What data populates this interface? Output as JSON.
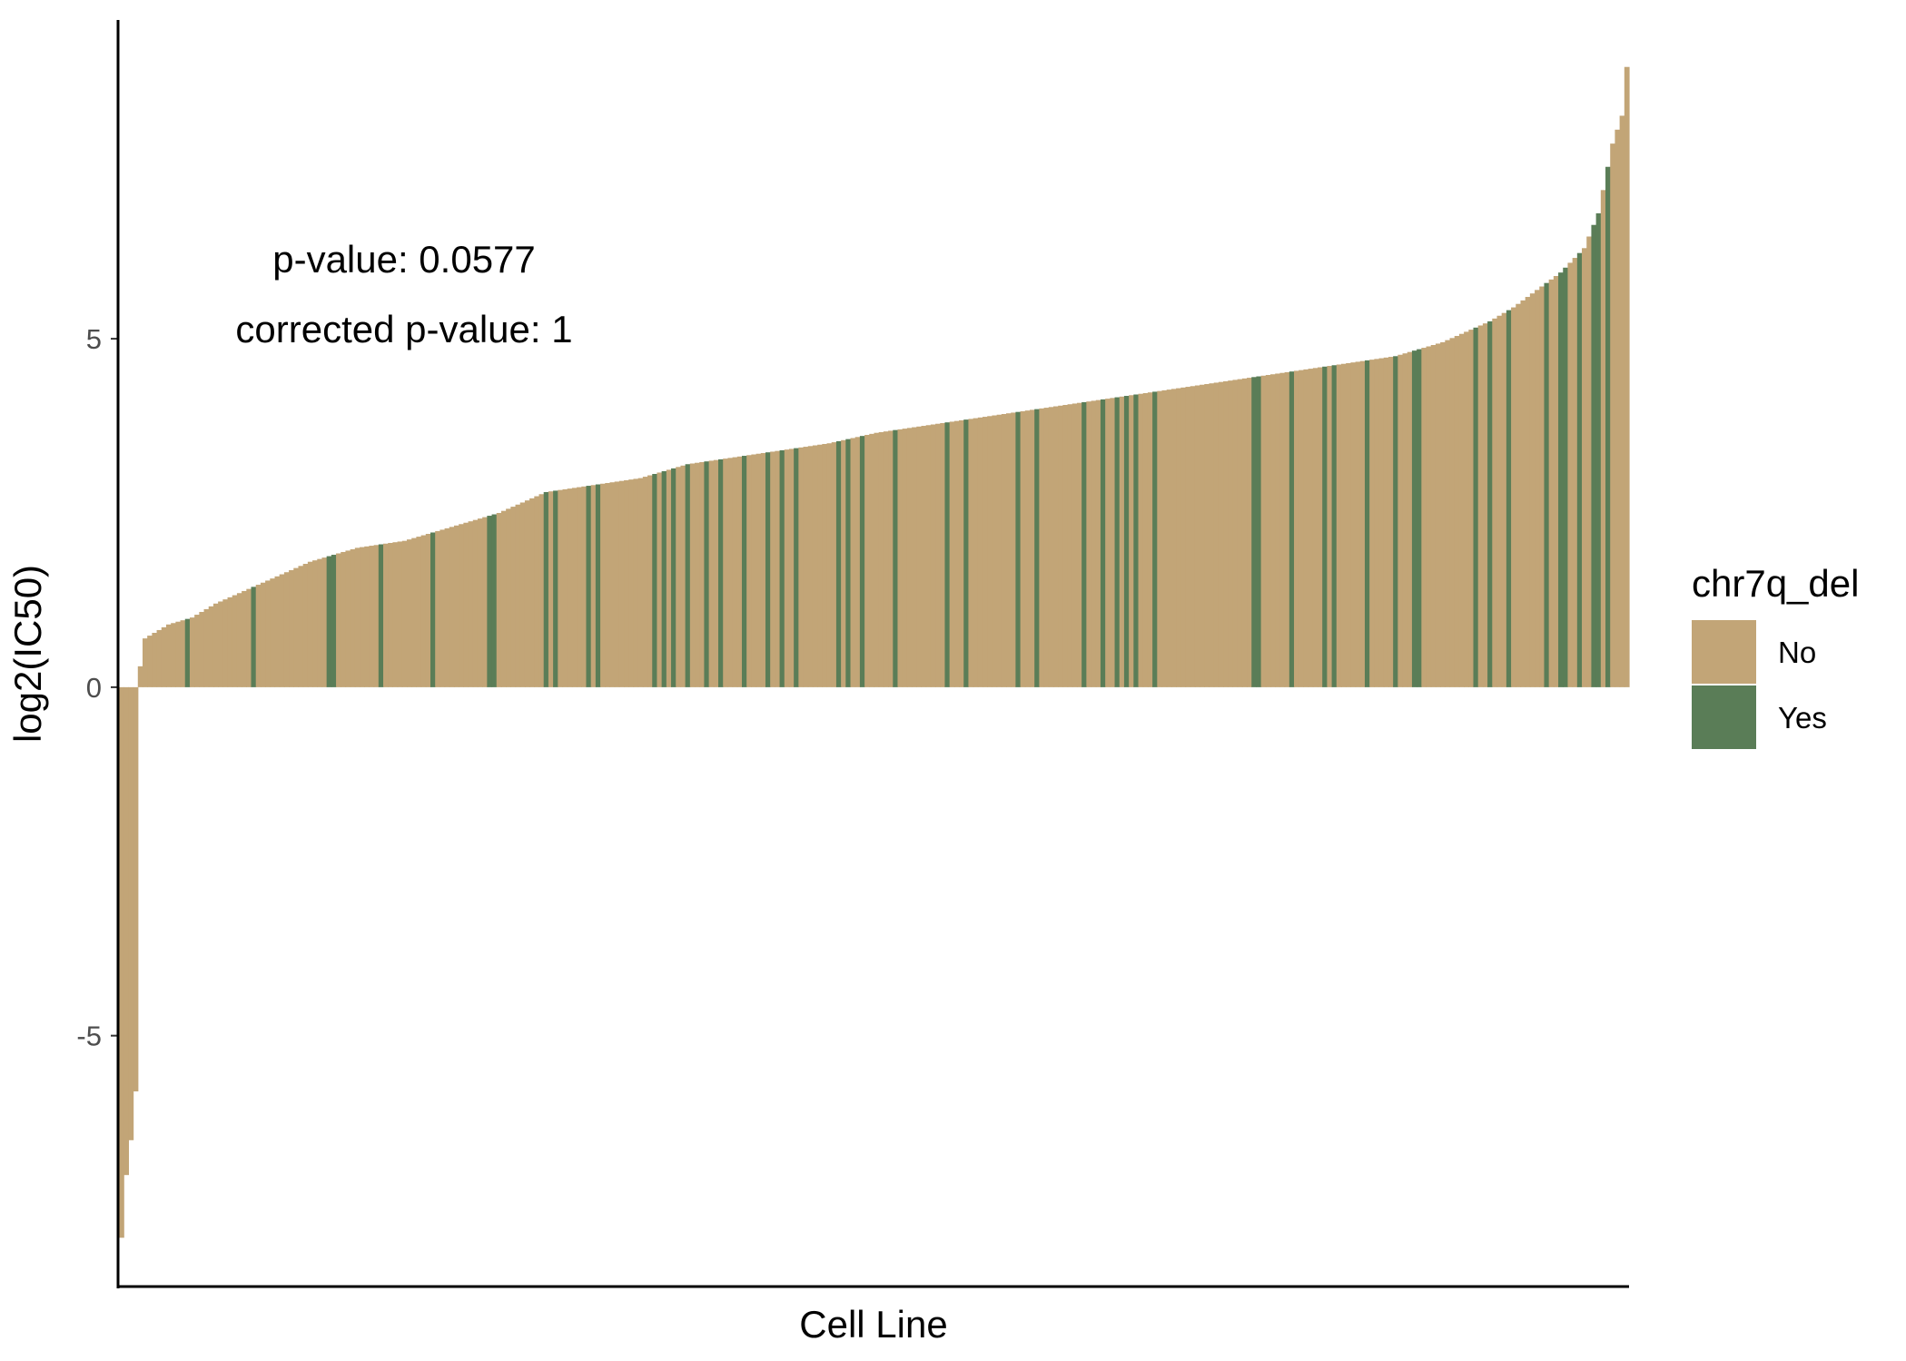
{
  "chart_data": {
    "type": "bar",
    "n_bars": 320,
    "xlabel": "Cell Line",
    "ylabel": "log2(IC50)",
    "ylim": [
      -8.6,
      9.6
    ],
    "yticks": [
      -5,
      0,
      5
    ],
    "ytick_labels": [
      "-5",
      "0",
      "5"
    ],
    "grid": false,
    "legend_placement": "right",
    "legend": {
      "title": "chr7q_del",
      "entries": [
        {
          "label": "No",
          "color": "#c2a577"
        },
        {
          "label": "Yes",
          "color": "#5a7d57"
        }
      ]
    },
    "annotations": [
      "p-value: 0.0577",
      "corrected p-value: 1"
    ],
    "curve_points": [
      [
        0,
        -7.9
      ],
      [
        1,
        -7.0
      ],
      [
        2,
        -6.5
      ],
      [
        3,
        -5.8
      ],
      [
        4,
        0.3
      ],
      [
        5,
        0.7
      ],
      [
        10,
        0.9
      ],
      [
        15,
        1.0
      ],
      [
        20,
        1.2
      ],
      [
        30,
        1.5
      ],
      [
        40,
        1.8
      ],
      [
        50,
        2.0
      ],
      [
        60,
        2.1
      ],
      [
        70,
        2.3
      ],
      [
        80,
        2.5
      ],
      [
        90,
        2.8
      ],
      [
        100,
        2.9
      ],
      [
        110,
        3.0
      ],
      [
        120,
        3.2
      ],
      [
        130,
        3.3
      ],
      [
        140,
        3.4
      ],
      [
        150,
        3.5
      ],
      [
        160,
        3.65
      ],
      [
        170,
        3.75
      ],
      [
        180,
        3.85
      ],
      [
        190,
        3.95
      ],
      [
        200,
        4.05
      ],
      [
        210,
        4.15
      ],
      [
        220,
        4.25
      ],
      [
        230,
        4.35
      ],
      [
        240,
        4.45
      ],
      [
        250,
        4.55
      ],
      [
        260,
        4.65
      ],
      [
        270,
        4.75
      ],
      [
        280,
        4.95
      ],
      [
        290,
        5.25
      ],
      [
        295,
        5.45
      ],
      [
        300,
        5.7
      ],
      [
        305,
        5.95
      ],
      [
        310,
        6.3
      ],
      [
        313,
        6.8
      ],
      [
        316,
        7.8
      ],
      [
        318,
        8.2
      ],
      [
        319,
        8.9
      ]
    ],
    "yes_indices": [
      14,
      28,
      44,
      45,
      55,
      66,
      78,
      79,
      90,
      92,
      99,
      101,
      113,
      115,
      117,
      120,
      124,
      127,
      132,
      137,
      140,
      143,
      152,
      154,
      157,
      164,
      175,
      179,
      190,
      194,
      204,
      208,
      211,
      213,
      215,
      219,
      240,
      241,
      248,
      255,
      257,
      264,
      270,
      274,
      275,
      287,
      290,
      294,
      302,
      305,
      306,
      309,
      312,
      313,
      315
    ]
  }
}
